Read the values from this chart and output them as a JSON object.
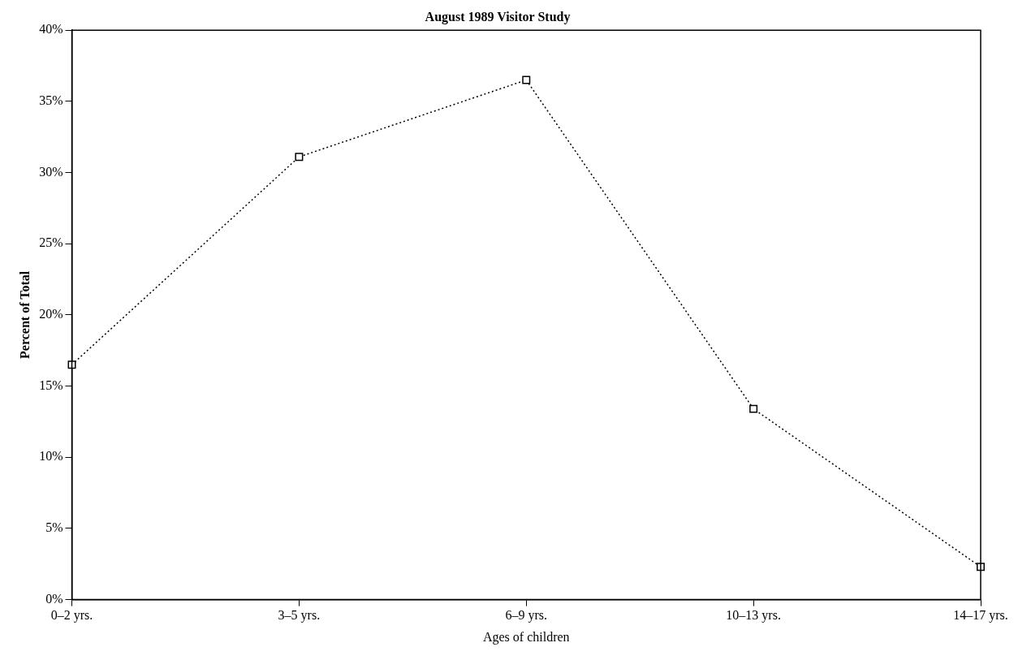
{
  "chart_data": {
    "type": "line",
    "title": "August 1989 Visitor Study",
    "xlabel": "Ages of children",
    "ylabel": "Percent of Total",
    "categories": [
      "0–2 yrs.",
      "3–5 yrs.",
      "6–9 yrs.",
      "10–13 yrs.",
      "14–17 yrs."
    ],
    "series": [
      {
        "color": "#000000",
        "values": [
          16.5,
          31.1,
          36.5,
          13.4,
          2.3
        ]
      }
    ],
    "ylim": [
      0,
      40
    ],
    "yticks": [
      {
        "value": 0,
        "label": "0%"
      },
      {
        "value": 5,
        "label": "5%"
      },
      {
        "value": 10,
        "label": "10%"
      },
      {
        "value": 15,
        "label": "15%"
      },
      {
        "value": 20,
        "label": "20%"
      },
      {
        "value": 25,
        "label": "25%"
      },
      {
        "value": 30,
        "label": "30%"
      },
      {
        "value": 35,
        "label": "35%"
      },
      {
        "value": 40,
        "label": "40%"
      }
    ],
    "grid": false,
    "legend": false,
    "marker": "square",
    "line_style": "dotted"
  }
}
